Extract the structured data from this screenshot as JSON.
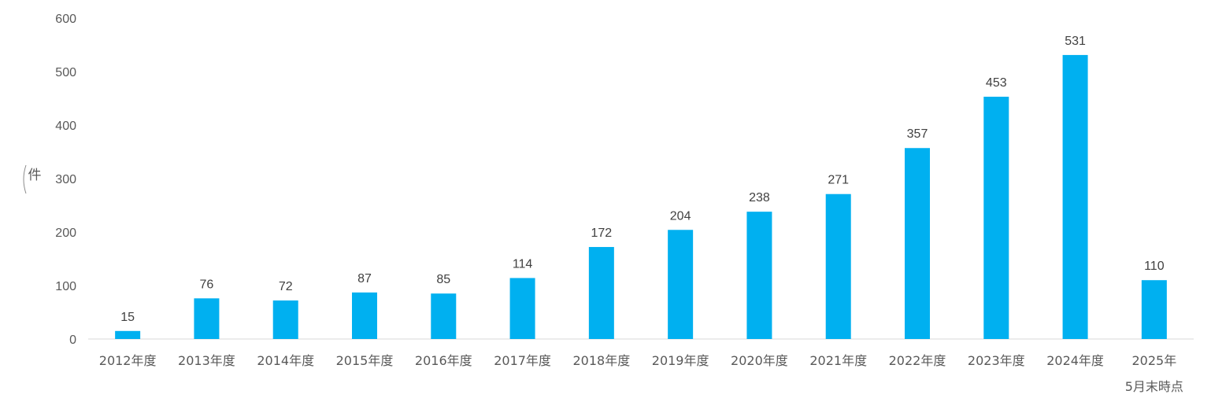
{
  "chart_data": {
    "type": "bar",
    "ylabel": "件",
    "ylim": [
      0,
      600
    ],
    "yticks": [
      "0",
      "100",
      "200",
      "300",
      "400",
      "500",
      "600"
    ],
    "grid": false,
    "color": "#00B0F0",
    "categories": [
      "2012年度",
      "2013年度",
      "2014年度",
      "2015年度",
      "2016年度",
      "2017年度",
      "2018年度",
      "2019年度",
      "2020年度",
      "2021年度",
      "2022年度",
      "2023年度",
      "2024年度",
      "2025年"
    ],
    "category_sublabels": [
      "",
      "",
      "",
      "",
      "",
      "",
      "",
      "",
      "",
      "",
      "",
      "",
      "",
      "5月末時点"
    ],
    "values": [
      15,
      76,
      72,
      87,
      85,
      114,
      172,
      204,
      238,
      271,
      357,
      453,
      531,
      110
    ]
  }
}
